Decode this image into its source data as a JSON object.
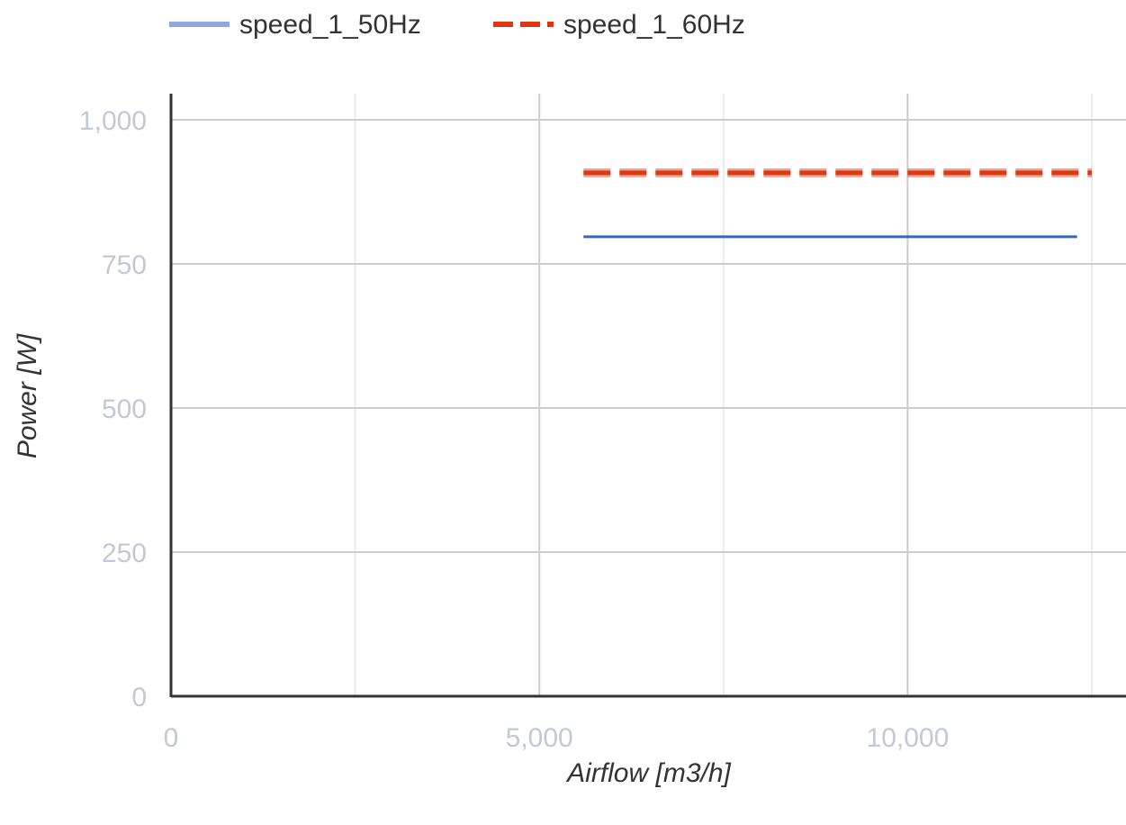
{
  "chart_data": {
    "type": "line",
    "xlabel": "Airflow [m3/h]",
    "ylabel": "Power [W]",
    "xlim": [
      0,
      12500
    ],
    "ylim": [
      0,
      1000
    ],
    "x_ticks": [
      0,
      5000,
      10000
    ],
    "x_tick_labels": [
      "0",
      "5,000",
      "10,000"
    ],
    "x_minor_gridlines": [
      2500,
      7500,
      12500
    ],
    "y_ticks": [
      0,
      250,
      500,
      750,
      1000
    ],
    "y_tick_labels": [
      "0",
      "250",
      "500",
      "750",
      "1,000"
    ],
    "grid": true,
    "legend_position": "top-left",
    "series": [
      {
        "name": "speed_1_50Hz",
        "color": "#3366cc",
        "legend_color": "#8fa8dc",
        "style": "solid",
        "x": [
          5600,
          12300
        ],
        "y": [
          797,
          797
        ]
      },
      {
        "name": "speed_1_60Hz",
        "color": "#dc3912",
        "style": "dashed",
        "x": [
          5600,
          12500
        ],
        "y": [
          908,
          908
        ]
      }
    ]
  }
}
